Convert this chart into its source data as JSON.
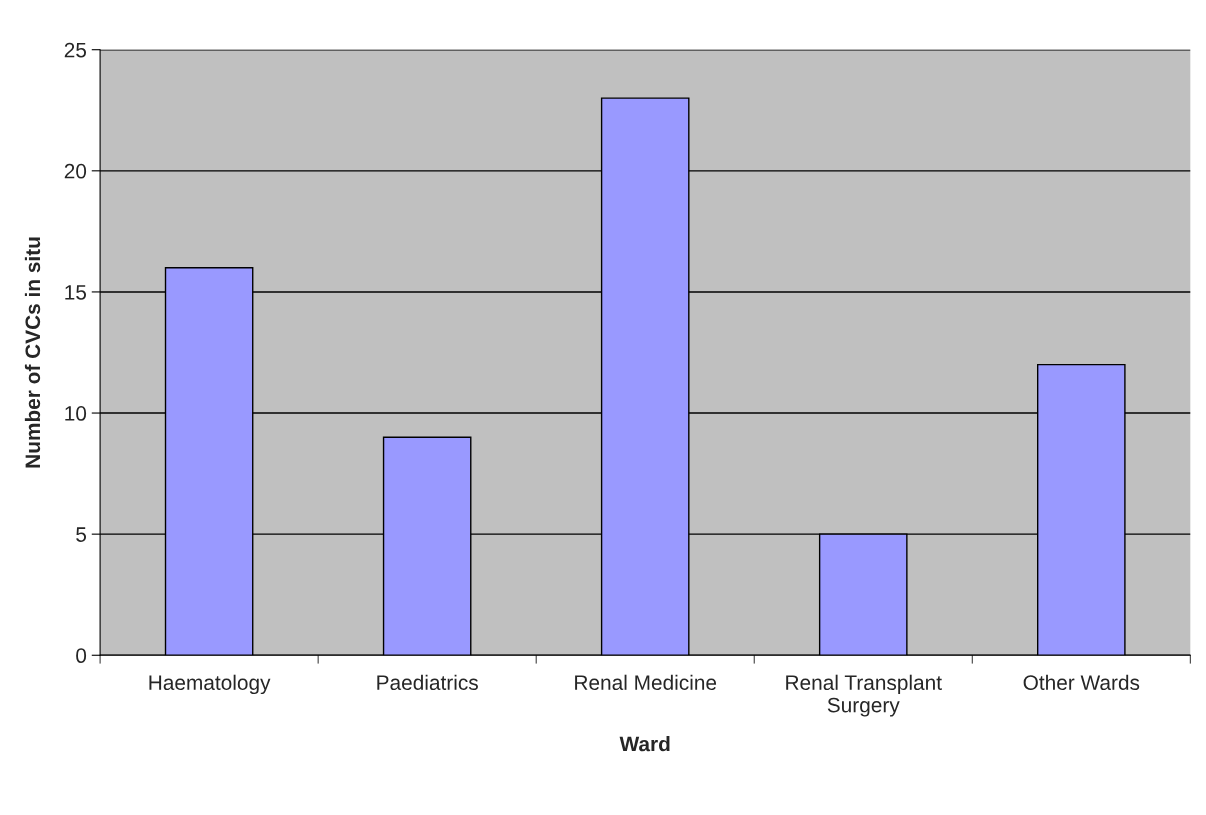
{
  "chart_data": {
    "type": "bar",
    "xlabel": "Ward",
    "ylabel": "Number of CVCs in situ",
    "categories": [
      "Haematology",
      "Paediatrics",
      "Renal Medicine",
      "Renal Transplant\nSurgery",
      "Other Wards"
    ],
    "values": [
      16,
      9,
      23,
      5,
      12
    ],
    "color": "#9999ff",
    "ylim": [
      0,
      25
    ],
    "yticks": [
      0,
      5,
      10,
      15,
      20,
      25
    ],
    "grid": "y",
    "legend": false
  }
}
